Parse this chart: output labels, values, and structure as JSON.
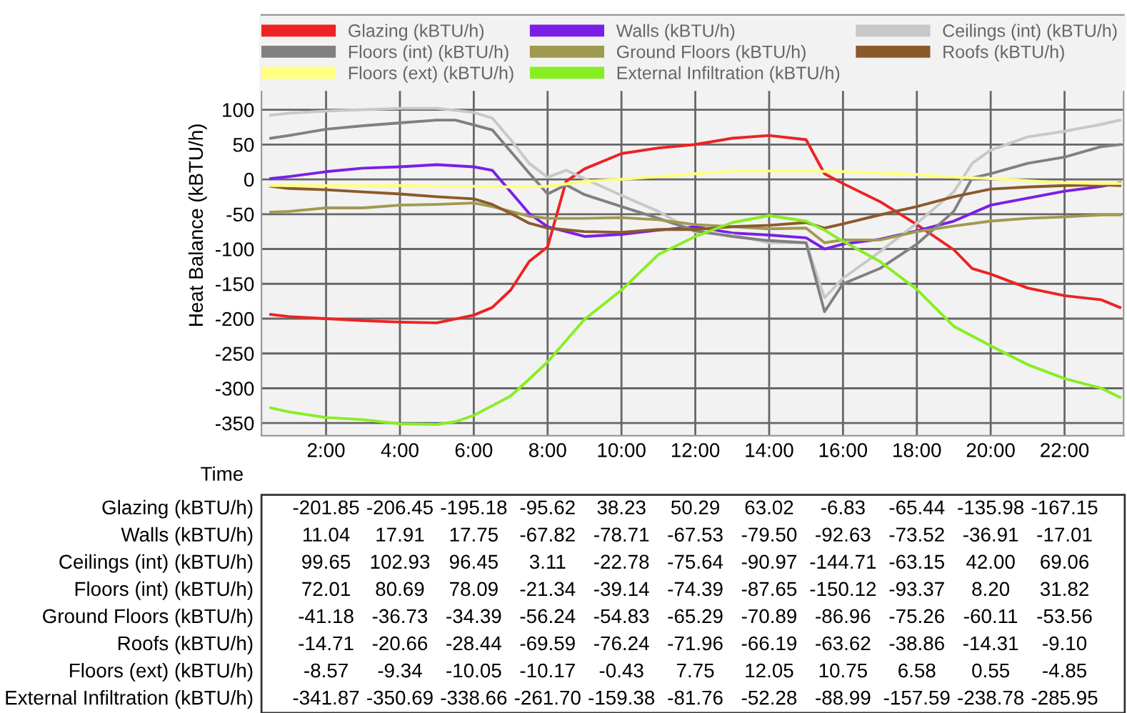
{
  "chart_data": {
    "type": "line",
    "xlabel": "Time",
    "ylabel": "Heat Balance (kBTU/h)",
    "xlim": [
      0.25,
      23.6
    ],
    "ylim": [
      -368,
      236
    ],
    "xticks": [
      {
        "value": 2,
        "label": "2:00"
      },
      {
        "value": 4,
        "label": "4:00"
      },
      {
        "value": 6,
        "label": "6:00"
      },
      {
        "value": 8,
        "label": "8:00"
      },
      {
        "value": 10,
        "label": "10:00"
      },
      {
        "value": 12,
        "label": "12:00"
      },
      {
        "value": 14,
        "label": "14:00"
      },
      {
        "value": 16,
        "label": "16:00"
      },
      {
        "value": 18,
        "label": "18:00"
      },
      {
        "value": 20,
        "label": "20:00"
      },
      {
        "value": 22,
        "label": "22:00"
      }
    ],
    "yticks": [
      -350,
      -300,
      -250,
      -200,
      -150,
      -100,
      -50,
      0,
      50,
      100
    ],
    "grid": true,
    "legend": "top",
    "marker": "none",
    "line_style": "solid",
    "series": [
      {
        "name": "Glazing (kBTU/h)",
        "color": "#ee2222",
        "x": [
          0.5,
          1,
          2,
          3,
          4,
          5,
          6,
          6.5,
          7,
          7.5,
          8,
          8.5,
          9,
          10,
          11,
          12,
          13,
          14,
          15,
          15.5,
          16,
          17,
          18,
          19,
          19.5,
          20,
          21,
          22,
          23,
          23.5
        ],
        "values": [
          -194,
          -197,
          -200,
          -203,
          -205,
          -206,
          -195,
          -184,
          -159,
          -118,
          -97,
          -3,
          15,
          37,
          45,
          50,
          59,
          63,
          57,
          8,
          -6,
          -32,
          -65,
          -101,
          -128,
          -136,
          -156,
          -167,
          -173,
          -184
        ]
      },
      {
        "name": "Walls (kBTU/h)",
        "color": "#7a1fe6",
        "x": [
          0.5,
          1,
          2,
          3,
          4,
          5,
          6,
          6.5,
          7,
          7.5,
          8,
          9,
          10,
          11,
          12,
          13,
          14,
          15,
          15.5,
          16,
          17,
          18,
          19,
          20,
          21,
          22,
          23,
          23.5
        ],
        "values": [
          1,
          4,
          11,
          16,
          18,
          21,
          18,
          13,
          -18,
          -49,
          -68,
          -82,
          -79,
          -73,
          -68,
          -77,
          -80,
          -84,
          -100,
          -93,
          -86,
          -74,
          -60,
          -37,
          -27,
          -17,
          -10,
          -5
        ]
      },
      {
        "name": "Ceilings (int) (kBTU/h)",
        "color": "#c8c8c8",
        "x": [
          0.5,
          1,
          2,
          3,
          4,
          5,
          6,
          6.5,
          7,
          7.5,
          8,
          8.5,
          9,
          10,
          11,
          12,
          13,
          14,
          15,
          15.5,
          16,
          17,
          18,
          19,
          19.5,
          20,
          21,
          22,
          23,
          23.5
        ],
        "values": [
          92,
          95,
          98,
          100,
          102,
          102,
          96,
          88,
          57,
          23,
          3,
          13,
          1,
          -23,
          -46,
          -76,
          -80,
          -91,
          -91,
          -170,
          -142,
          -104,
          -63,
          -18,
          23,
          42,
          61,
          69,
          79,
          85
        ]
      },
      {
        "name": "Floors (int) (kBTU/h)",
        "color": "#808080",
        "x": [
          0.5,
          1,
          2,
          3,
          4,
          5,
          5.5,
          6,
          6.5,
          7,
          7.5,
          8,
          8.5,
          9,
          10,
          11,
          12,
          13,
          14,
          15,
          15.5,
          16,
          17,
          18,
          19,
          19.5,
          20,
          21,
          22,
          23,
          23.5
        ],
        "values": [
          59,
          63,
          72,
          77,
          81,
          85,
          85,
          78,
          71,
          40,
          9,
          -21,
          -8,
          -22,
          -39,
          -56,
          -74,
          -82,
          -88,
          -91,
          -190,
          -150,
          -128,
          -93,
          -46,
          2,
          8,
          23,
          32,
          47,
          50
        ]
      },
      {
        "name": "Ground Floors (kBTU/h)",
        "color": "#a09a50",
        "x": [
          0.5,
          1,
          2,
          3,
          4,
          5,
          6,
          6.5,
          7,
          7.5,
          8,
          9,
          10,
          11,
          12,
          13,
          14,
          15,
          15.5,
          16,
          17,
          18,
          19,
          20,
          21,
          22,
          23,
          23.5
        ],
        "values": [
          -47,
          -46,
          -41,
          -41,
          -37,
          -36,
          -34,
          -39,
          -46,
          -53,
          -56,
          -56,
          -55,
          -58,
          -65,
          -68,
          -71,
          -70,
          -91,
          -87,
          -87,
          -75,
          -67,
          -60,
          -56,
          -54,
          -51,
          -51
        ]
      },
      {
        "name": "Roofs (kBTU/h)",
        "color": "#8b5a2b",
        "x": [
          0.5,
          1,
          2,
          3,
          4,
          5,
          6,
          6.5,
          7,
          7.5,
          8,
          9,
          10,
          11,
          12,
          13,
          14,
          15,
          15.5,
          16,
          17,
          18,
          19,
          20,
          21,
          22,
          23,
          23.5
        ],
        "values": [
          -10,
          -13,
          -15,
          -18,
          -21,
          -25,
          -28,
          -36,
          -49,
          -63,
          -70,
          -75,
          -76,
          -72,
          -72,
          -68,
          -66,
          -62,
          -70,
          -64,
          -51,
          -39,
          -25,
          -14,
          -11,
          -9,
          -8,
          -9
        ]
      },
      {
        "name": "Floors (ext) (kBTU/h)",
        "color": "#ffff80",
        "x": [
          0.5,
          1,
          2,
          3,
          4,
          5,
          6,
          7,
          8,
          9,
          10,
          11,
          12,
          13,
          14,
          15,
          16,
          17,
          18,
          19,
          20,
          21,
          22,
          23,
          23.5
        ],
        "values": [
          -9,
          -9,
          -9,
          -9,
          -9,
          -10,
          -10,
          -11,
          -10,
          -3,
          0,
          4,
          8,
          12,
          12,
          12,
          11,
          9,
          7,
          3,
          1,
          -2,
          -5,
          -6,
          -6
        ]
      },
      {
        "name": "External Infiltration (kBTU/h)",
        "color": "#88ee22",
        "x": [
          0.5,
          1,
          2,
          3,
          4,
          5,
          5.5,
          6,
          6.5,
          7,
          7.5,
          8,
          9,
          10,
          11,
          12,
          13,
          14,
          15,
          15.5,
          16,
          17,
          18,
          19,
          20,
          21,
          22,
          23,
          23.5
        ],
        "values": [
          -328,
          -334,
          -342,
          -345,
          -351,
          -352,
          -348,
          -339,
          -325,
          -311,
          -287,
          -262,
          -201,
          -159,
          -108,
          -82,
          -62,
          -52,
          -60,
          -73,
          -89,
          -118,
          -158,
          -211,
          -239,
          -266,
          -286,
          -300,
          -313
        ]
      }
    ],
    "annotations": [
      "-201.85",
      "-206.45",
      "-195.18",
      "-95.62",
      "38.23",
      "50.29",
      "63.02",
      "-6.83",
      "-65.44",
      "-135.98",
      "-167.15",
      "11.04",
      "17.91",
      "17.75",
      "-67.82",
      "-78.71",
      "-67.53",
      "-79.50",
      "-92.63",
      "-73.52",
      "-36.91",
      "-17.01",
      "99.65",
      "102.93",
      "96.45",
      "3.11",
      "-22.78",
      "-75.64",
      "-90.97",
      "-144.71",
      "-63.15",
      "42.00",
      "69.06",
      "72.01",
      "80.69",
      "78.09",
      "-21.34",
      "-39.14",
      "-74.39",
      "-87.65",
      "-150.12",
      "-93.37",
      "8.20",
      "31.82",
      "-41.18",
      "-36.73",
      "-34.39",
      "-56.24",
      "-54.83",
      "-65.29",
      "-70.89",
      "-86.96",
      "-75.26",
      "-60.11",
      "-53.56",
      "-14.71",
      "-20.66",
      "-28.44",
      "-69.59",
      "-76.24",
      "-71.96",
      "-66.19",
      "-63.62",
      "-38.86",
      "-14.31",
      "-9.10",
      "-8.57",
      "-9.34",
      "-10.05",
      "-10.17",
      "-0.43",
      "7.75",
      "12.05",
      "10.75",
      "6.58",
      "0.55",
      "-4.85",
      "-341.87",
      "-350.69",
      "-338.66",
      "-261.70",
      "-159.38",
      "-81.76",
      "-52.28",
      "-88.99",
      "-157.59",
      "-238.78",
      "-285.95"
    ]
  }
}
